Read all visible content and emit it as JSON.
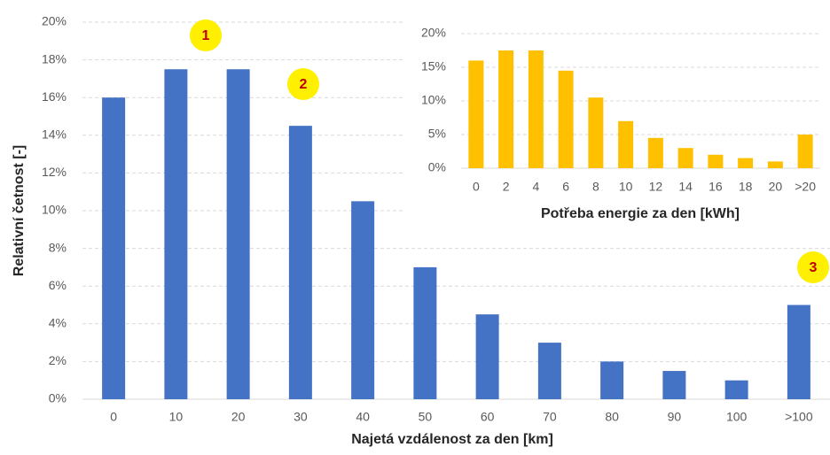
{
  "chart_data": [
    {
      "type": "bar",
      "x_label": "Najetá vzdálenost za den [km]",
      "y_label": "Relativní četnost [-]",
      "categories": [
        "0",
        "10",
        "20",
        "30",
        "40",
        "50",
        "60",
        "70",
        "80",
        "90",
        "100",
        ">100"
      ],
      "values": [
        16,
        17.5,
        17.5,
        14.5,
        10.5,
        7,
        4.5,
        3,
        2,
        1.5,
        1,
        5
      ],
      "color": "#4472c4",
      "ylim": [
        0,
        20
      ],
      "yticks": [
        {
          "value": 0,
          "label": "0%"
        },
        {
          "value": 2,
          "label": "2%"
        },
        {
          "value": 4,
          "label": "4%"
        },
        {
          "value": 6,
          "label": "6%"
        },
        {
          "value": 8,
          "label": "8%"
        },
        {
          "value": 10,
          "label": "10%"
        },
        {
          "value": 12,
          "label": "12%"
        },
        {
          "value": 14,
          "label": "14%"
        },
        {
          "value": 16,
          "label": "16%"
        },
        {
          "value": 18,
          "label": "18%"
        },
        {
          "value": 20,
          "label": "20%"
        }
      ],
      "grid": true,
      "annotations": [
        "1",
        "2",
        "3"
      ]
    },
    {
      "type": "bar",
      "x_label": "Potřeba energie za den [kWh]",
      "categories": [
        "0",
        "2",
        "4",
        "6",
        "8",
        "10",
        "12",
        "14",
        "16",
        "18",
        "20",
        ">20"
      ],
      "values": [
        16,
        17.5,
        17.5,
        14.5,
        10.5,
        7,
        4.5,
        3,
        2,
        1.5,
        1,
        5
      ],
      "color": "#ffc000",
      "ylim": [
        0,
        20
      ],
      "yticks": [
        {
          "value": 0,
          "label": "0%"
        },
        {
          "value": 5,
          "label": "5%"
        },
        {
          "value": 10,
          "label": "10%"
        },
        {
          "value": 15,
          "label": "15%"
        },
        {
          "value": 20,
          "label": "20%"
        }
      ],
      "grid": true
    }
  ]
}
